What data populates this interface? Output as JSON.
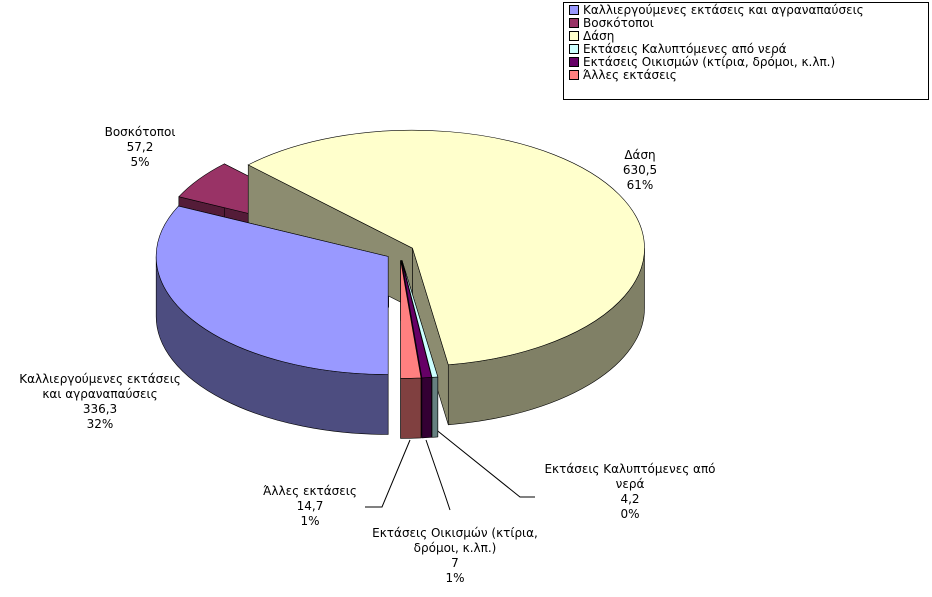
{
  "chart_data": {
    "type": "pie3d",
    "categories": [
      "Καλλιεργούμενες εκτάσεις και αγραναπαύσεις",
      "Βοσκότοποι",
      "Δάση",
      "Εκτάσεις Καλυπτόμενες από νερά",
      "Εκτάσεις Οικισμών (κτίρια, δρόμοι, κ.λπ.)",
      "Άλλες εκτάσεις"
    ],
    "values": [
      336.3,
      57.2,
      630.5,
      4.2,
      7,
      14.7
    ],
    "value_labels": [
      "336,3",
      "57,2",
      "630,5",
      "4,2",
      "7",
      "14,7"
    ],
    "percents": [
      32,
      5,
      61,
      0,
      1,
      1
    ],
    "percent_labels": [
      "32%",
      "5%",
      "61%",
      "0%",
      "1%",
      "1%"
    ],
    "colors": [
      "#9999ff",
      "#993366",
      "#ffffcc",
      "#ccffff",
      "#660066",
      "#ff8080"
    ],
    "legend": "top-right"
  }
}
